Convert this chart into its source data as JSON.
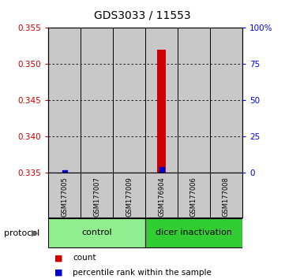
{
  "title": "GDS3033 / 11553",
  "samples": [
    "GSM177005",
    "GSM177007",
    "GSM177009",
    "GSM176904",
    "GSM177006",
    "GSM177008"
  ],
  "groups": [
    "control",
    "control",
    "control",
    "dicer inactivation",
    "dicer inactivation",
    "dicer inactivation"
  ],
  "group_colors": {
    "control": "#90EE90",
    "dicer inactivation": "#32CD32"
  },
  "red_values": [
    0.335,
    0.335,
    0.335,
    0.352,
    0.335,
    0.335
  ],
  "blue_values": [
    0.335,
    null,
    null,
    0.3355,
    null,
    null
  ],
  "ylim": [
    0.335,
    0.355
  ],
  "yticks_left": [
    0.335,
    0.34,
    0.345,
    0.35,
    0.355
  ],
  "yticks_right": [
    0,
    25,
    50,
    75,
    100
  ],
  "yticks_right_labels": [
    "0",
    "25",
    "50",
    "75",
    "100%"
  ],
  "red_color": "#CC0000",
  "blue_color": "#0000CC",
  "background_color": "#FFFFFF",
  "plot_bg": "#FFFFFF",
  "sample_bg": "#C8C8C8",
  "legend_items": [
    {
      "color": "#CC0000",
      "label": "count"
    },
    {
      "color": "#0000CC",
      "label": "percentile rank within the sample"
    }
  ]
}
